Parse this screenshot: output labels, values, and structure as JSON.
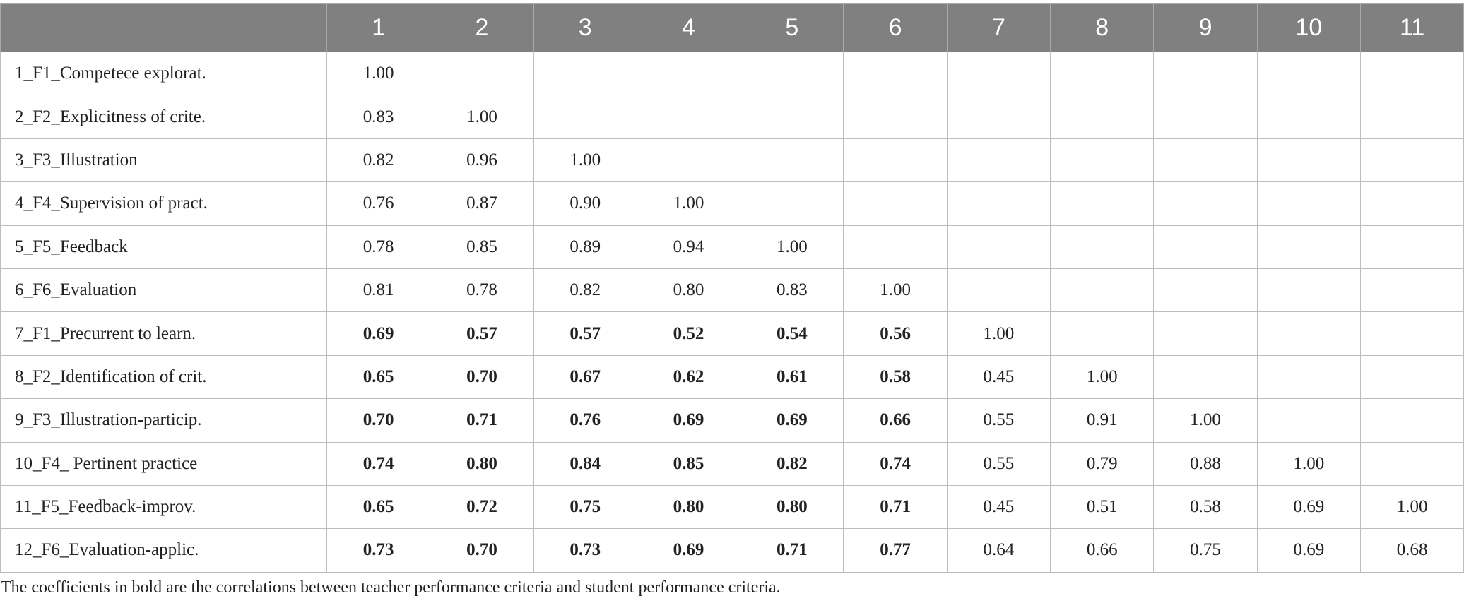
{
  "table": {
    "header": [
      "",
      "1",
      "2",
      "3",
      "4",
      "5",
      "6",
      "7",
      "8",
      "9",
      "10",
      "11"
    ],
    "rows": [
      {
        "label": "1_F1_Competece explorat.",
        "cells": [
          {
            "v": "1.00",
            "b": false
          },
          {
            "v": "",
            "b": false
          },
          {
            "v": "",
            "b": false
          },
          {
            "v": "",
            "b": false
          },
          {
            "v": "",
            "b": false
          },
          {
            "v": "",
            "b": false
          },
          {
            "v": "",
            "b": false
          },
          {
            "v": "",
            "b": false
          },
          {
            "v": "",
            "b": false
          },
          {
            "v": "",
            "b": false
          },
          {
            "v": "",
            "b": false
          }
        ]
      },
      {
        "label": "2_F2_Explicitness of crite.",
        "cells": [
          {
            "v": "0.83",
            "b": false
          },
          {
            "v": "1.00",
            "b": false
          },
          {
            "v": "",
            "b": false
          },
          {
            "v": "",
            "b": false
          },
          {
            "v": "",
            "b": false
          },
          {
            "v": "",
            "b": false
          },
          {
            "v": "",
            "b": false
          },
          {
            "v": "",
            "b": false
          },
          {
            "v": "",
            "b": false
          },
          {
            "v": "",
            "b": false
          },
          {
            "v": "",
            "b": false
          }
        ]
      },
      {
        "label": "3_F3_Illustration",
        "cells": [
          {
            "v": "0.82",
            "b": false
          },
          {
            "v": "0.96",
            "b": false
          },
          {
            "v": "1.00",
            "b": false
          },
          {
            "v": "",
            "b": false
          },
          {
            "v": "",
            "b": false
          },
          {
            "v": "",
            "b": false
          },
          {
            "v": "",
            "b": false
          },
          {
            "v": "",
            "b": false
          },
          {
            "v": "",
            "b": false
          },
          {
            "v": "",
            "b": false
          },
          {
            "v": "",
            "b": false
          }
        ]
      },
      {
        "label": "4_F4_Supervision of pract.",
        "cells": [
          {
            "v": "0.76",
            "b": false
          },
          {
            "v": "0.87",
            "b": false
          },
          {
            "v": "0.90",
            "b": false
          },
          {
            "v": "1.00",
            "b": false
          },
          {
            "v": "",
            "b": false
          },
          {
            "v": "",
            "b": false
          },
          {
            "v": "",
            "b": false
          },
          {
            "v": "",
            "b": false
          },
          {
            "v": "",
            "b": false
          },
          {
            "v": "",
            "b": false
          },
          {
            "v": "",
            "b": false
          }
        ]
      },
      {
        "label": "5_F5_Feedback",
        "cells": [
          {
            "v": "0.78",
            "b": false
          },
          {
            "v": "0.85",
            "b": false
          },
          {
            "v": "0.89",
            "b": false
          },
          {
            "v": "0.94",
            "b": false
          },
          {
            "v": "1.00",
            "b": false
          },
          {
            "v": "",
            "b": false
          },
          {
            "v": "",
            "b": false
          },
          {
            "v": "",
            "b": false
          },
          {
            "v": "",
            "b": false
          },
          {
            "v": "",
            "b": false
          },
          {
            "v": "",
            "b": false
          }
        ]
      },
      {
        "label": "6_F6_Evaluation",
        "cells": [
          {
            "v": "0.81",
            "b": false
          },
          {
            "v": "0.78",
            "b": false
          },
          {
            "v": "0.82",
            "b": false
          },
          {
            "v": "0.80",
            "b": false
          },
          {
            "v": "0.83",
            "b": false
          },
          {
            "v": "1.00",
            "b": false
          },
          {
            "v": "",
            "b": false
          },
          {
            "v": "",
            "b": false
          },
          {
            "v": "",
            "b": false
          },
          {
            "v": "",
            "b": false
          },
          {
            "v": "",
            "b": false
          }
        ]
      },
      {
        "label": "7_F1_Precurrent to learn.",
        "cells": [
          {
            "v": "0.69",
            "b": true
          },
          {
            "v": "0.57",
            "b": true
          },
          {
            "v": "0.57",
            "b": true
          },
          {
            "v": "0.52",
            "b": true
          },
          {
            "v": "0.54",
            "b": true
          },
          {
            "v": "0.56",
            "b": true
          },
          {
            "v": "1.00",
            "b": false
          },
          {
            "v": "",
            "b": false
          },
          {
            "v": "",
            "b": false
          },
          {
            "v": "",
            "b": false
          },
          {
            "v": "",
            "b": false
          }
        ]
      },
      {
        "label": "8_F2_Identification of crit.",
        "cells": [
          {
            "v": "0.65",
            "b": true
          },
          {
            "v": "0.70",
            "b": true
          },
          {
            "v": "0.67",
            "b": true
          },
          {
            "v": "0.62",
            "b": true
          },
          {
            "v": "0.61",
            "b": true
          },
          {
            "v": "0.58",
            "b": true
          },
          {
            "v": "0.45",
            "b": false
          },
          {
            "v": "1.00",
            "b": false
          },
          {
            "v": "",
            "b": false
          },
          {
            "v": "",
            "b": false
          },
          {
            "v": "",
            "b": false
          }
        ]
      },
      {
        "label": "9_F3_Illustration-particip.",
        "cells": [
          {
            "v": "0.70",
            "b": true
          },
          {
            "v": "0.71",
            "b": true
          },
          {
            "v": "0.76",
            "b": true
          },
          {
            "v": "0.69",
            "b": true
          },
          {
            "v": "0.69",
            "b": true
          },
          {
            "v": "0.66",
            "b": true
          },
          {
            "v": "0.55",
            "b": false
          },
          {
            "v": "0.91",
            "b": false
          },
          {
            "v": "1.00",
            "b": false
          },
          {
            "v": "",
            "b": false
          },
          {
            "v": "",
            "b": false
          }
        ]
      },
      {
        "label": "10_F4_ Pertinent practice",
        "cells": [
          {
            "v": "0.74",
            "b": true
          },
          {
            "v": "0.80",
            "b": true
          },
          {
            "v": "0.84",
            "b": true
          },
          {
            "v": "0.85",
            "b": true
          },
          {
            "v": "0.82",
            "b": true
          },
          {
            "v": "0.74",
            "b": true
          },
          {
            "v": "0.55",
            "b": false
          },
          {
            "v": "0.79",
            "b": false
          },
          {
            "v": "0.88",
            "b": false
          },
          {
            "v": "1.00",
            "b": false
          },
          {
            "v": "",
            "b": false
          }
        ]
      },
      {
        "label": "11_F5_Feedback-improv.",
        "cells": [
          {
            "v": "0.65",
            "b": true
          },
          {
            "v": "0.72",
            "b": true
          },
          {
            "v": "0.75",
            "b": true
          },
          {
            "v": "0.80",
            "b": true
          },
          {
            "v": "0.80",
            "b": true
          },
          {
            "v": "0.71",
            "b": true
          },
          {
            "v": "0.45",
            "b": false
          },
          {
            "v": "0.51",
            "b": false
          },
          {
            "v": "0.58",
            "b": false
          },
          {
            "v": "0.69",
            "b": false
          },
          {
            "v": "1.00",
            "b": false
          }
        ]
      },
      {
        "label": "12_F6_Evaluation-applic.",
        "cells": [
          {
            "v": "0.73",
            "b": true
          },
          {
            "v": "0.70",
            "b": true
          },
          {
            "v": "0.73",
            "b": true
          },
          {
            "v": "0.69",
            "b": true
          },
          {
            "v": "0.71",
            "b": true
          },
          {
            "v": "0.77",
            "b": true
          },
          {
            "v": "0.64",
            "b": false
          },
          {
            "v": "0.66",
            "b": false
          },
          {
            "v": "0.75",
            "b": false
          },
          {
            "v": "0.69",
            "b": false
          },
          {
            "v": "0.68",
            "b": false
          }
        ]
      }
    ]
  },
  "note": "The coefficients in bold are the correlations between teacher performance criteria and student performance criteria.",
  "colors": {
    "header_bg": "#808080",
    "header_text": "#ffffff",
    "grid": "#bdbdbd",
    "text": "#222222"
  }
}
